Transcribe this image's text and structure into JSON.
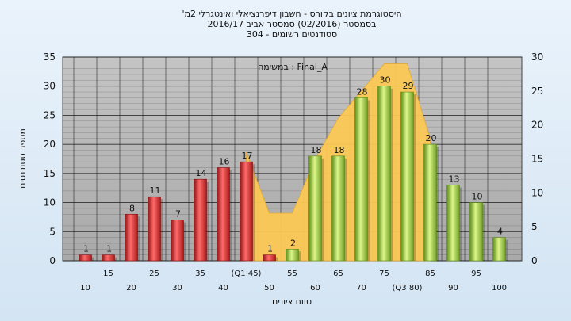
{
  "title_lines": [
    "'היסטוגרמת ציונים בקורס - חשבון דיפרנציאלי ואינטגרלי 2מ",
    "בסמסטר  (02/2016)  סמסטר אביב 2016/17",
    "סטודנטים רשומים - 304"
  ],
  "legend_label": "במשימה : Final_A",
  "colors": {
    "fail_bar": "#d63030",
    "pass_bar": "#9ccc3c",
    "area": "#fcc855",
    "plot_bg": "#b5b5b5",
    "grid": "#222222"
  },
  "chart_data": {
    "type": "bar",
    "xlabel": "טווח ציונים",
    "ylabel": "מספר סטודנטים",
    "ylim_left": [
      0,
      35
    ],
    "ylim_right": [
      0,
      30
    ],
    "yticks_left": [
      "0",
      "5",
      "10",
      "15",
      "20",
      "25",
      "30",
      "35"
    ],
    "yticks_right": [
      "0",
      "5",
      "10",
      "15",
      "20",
      "25",
      "30"
    ],
    "categories": [
      "10",
      "15",
      "20",
      "25",
      "30",
      "35",
      "40",
      "(Q1 45)",
      "50",
      "55",
      "60",
      "65",
      "70",
      "75",
      "(Q3 80)",
      "85",
      "90",
      "95",
      "100"
    ],
    "values": [
      1,
      1,
      8,
      11,
      7,
      14,
      16,
      17,
      1,
      2,
      18,
      18,
      28,
      30,
      29,
      20,
      13,
      10,
      4
    ],
    "pass_from_index": 9,
    "area_series": {
      "axis": "right",
      "values": [
        null,
        null,
        null,
        null,
        null,
        null,
        null,
        16,
        7,
        7,
        15,
        21,
        25,
        29,
        29,
        18,
        null,
        null,
        null
      ]
    }
  }
}
